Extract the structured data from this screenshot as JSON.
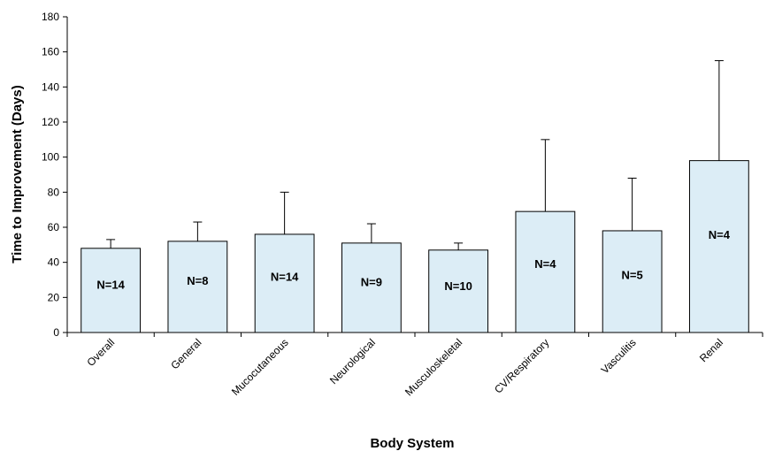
{
  "chart_data": {
    "type": "bar",
    "xlabel": "Body System",
    "ylabel": "Time to Improvement (Days)",
    "ylim": [
      0,
      180
    ],
    "yticks": [
      0,
      20,
      40,
      60,
      80,
      100,
      120,
      140,
      160,
      180
    ],
    "categories": [
      "Overall",
      "General",
      "Mucocutaneous",
      "Neurological",
      "Musculoskeletal",
      "CV/Respiratory",
      "Vasculitis",
      "Renal"
    ],
    "values": [
      48,
      52,
      56,
      51,
      47,
      69,
      58,
      98
    ],
    "error_upper": [
      53,
      63,
      80,
      62,
      51,
      110,
      88,
      155
    ],
    "n_labels": [
      "N=14",
      "N=8",
      "N=14",
      "N=9",
      "N=10",
      "N=4",
      "N=5",
      "N=4"
    ],
    "bar_color": "#dcedf6",
    "bar_edge_color": "#000000",
    "grid": false
  }
}
